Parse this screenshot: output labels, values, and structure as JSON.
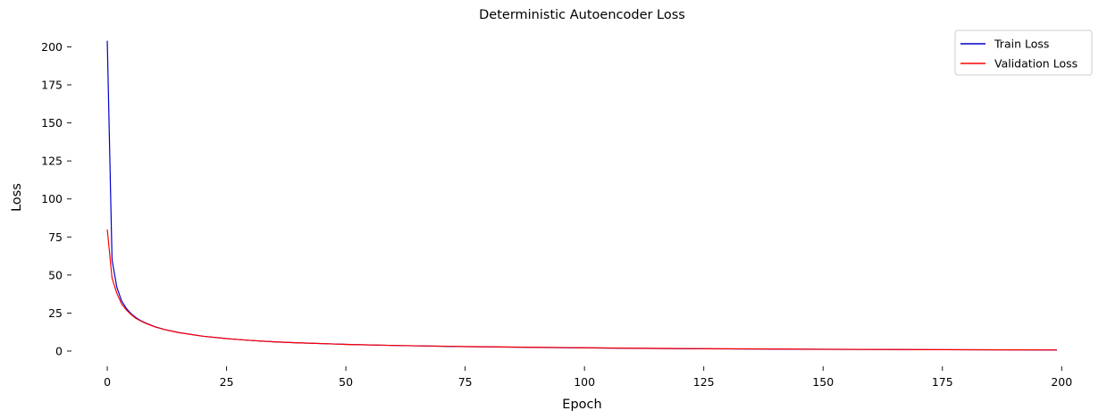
{
  "chart_data": {
    "type": "line",
    "title": "Deterministic Autoencoder Loss",
    "xlabel": "Epoch",
    "ylabel": "Loss",
    "xlim": [
      -7.5,
      206.5
    ],
    "ylim": [
      -10,
      212
    ],
    "x_ticks": [
      0,
      25,
      50,
      75,
      100,
      125,
      150,
      175,
      200
    ],
    "y_ticks": [
      0,
      25,
      50,
      75,
      100,
      125,
      150,
      175,
      200
    ],
    "grid": false,
    "legend_position": "top-right",
    "series": [
      {
        "name": "Train Loss",
        "color": "#0000cc",
        "points": [
          [
            0,
            204
          ],
          [
            1,
            60
          ],
          [
            2,
            42
          ],
          [
            3,
            33
          ],
          [
            4,
            28
          ],
          [
            5,
            24.5
          ],
          [
            6,
            22
          ],
          [
            7,
            20
          ],
          [
            8,
            18.5
          ],
          [
            10,
            16
          ],
          [
            12,
            14.2
          ],
          [
            15,
            12.2
          ],
          [
            20,
            9.8
          ],
          [
            25,
            8.2
          ],
          [
            30,
            7
          ],
          [
            35,
            6.1
          ],
          [
            40,
            5.4
          ],
          [
            50,
            4.4
          ],
          [
            60,
            3.7
          ],
          [
            75,
            2.9
          ],
          [
            90,
            2.4
          ],
          [
            100,
            2.1
          ],
          [
            110,
            1.8
          ],
          [
            125,
            1.5
          ],
          [
            150,
            1.15
          ],
          [
            175,
            0.9
          ],
          [
            199,
            0.7
          ]
        ]
      },
      {
        "name": "Validation Loss",
        "color": "#ff0000",
        "points": [
          [
            0,
            80
          ],
          [
            1,
            48
          ],
          [
            2,
            38
          ],
          [
            3,
            31
          ],
          [
            4,
            27
          ],
          [
            5,
            24
          ],
          [
            6,
            21.5
          ],
          [
            7,
            19.8
          ],
          [
            8,
            18.3
          ],
          [
            10,
            15.9
          ],
          [
            12,
            14.1
          ],
          [
            15,
            12.1
          ],
          [
            20,
            9.8
          ],
          [
            25,
            8.2
          ],
          [
            30,
            7
          ],
          [
            35,
            6.1
          ],
          [
            40,
            5.4
          ],
          [
            50,
            4.4
          ],
          [
            60,
            3.7
          ],
          [
            75,
            3
          ],
          [
            90,
            2.5
          ],
          [
            100,
            2.2
          ],
          [
            110,
            1.9
          ],
          [
            125,
            1.6
          ],
          [
            150,
            1.2
          ],
          [
            175,
            0.95
          ],
          [
            199,
            0.75
          ]
        ]
      }
    ]
  }
}
